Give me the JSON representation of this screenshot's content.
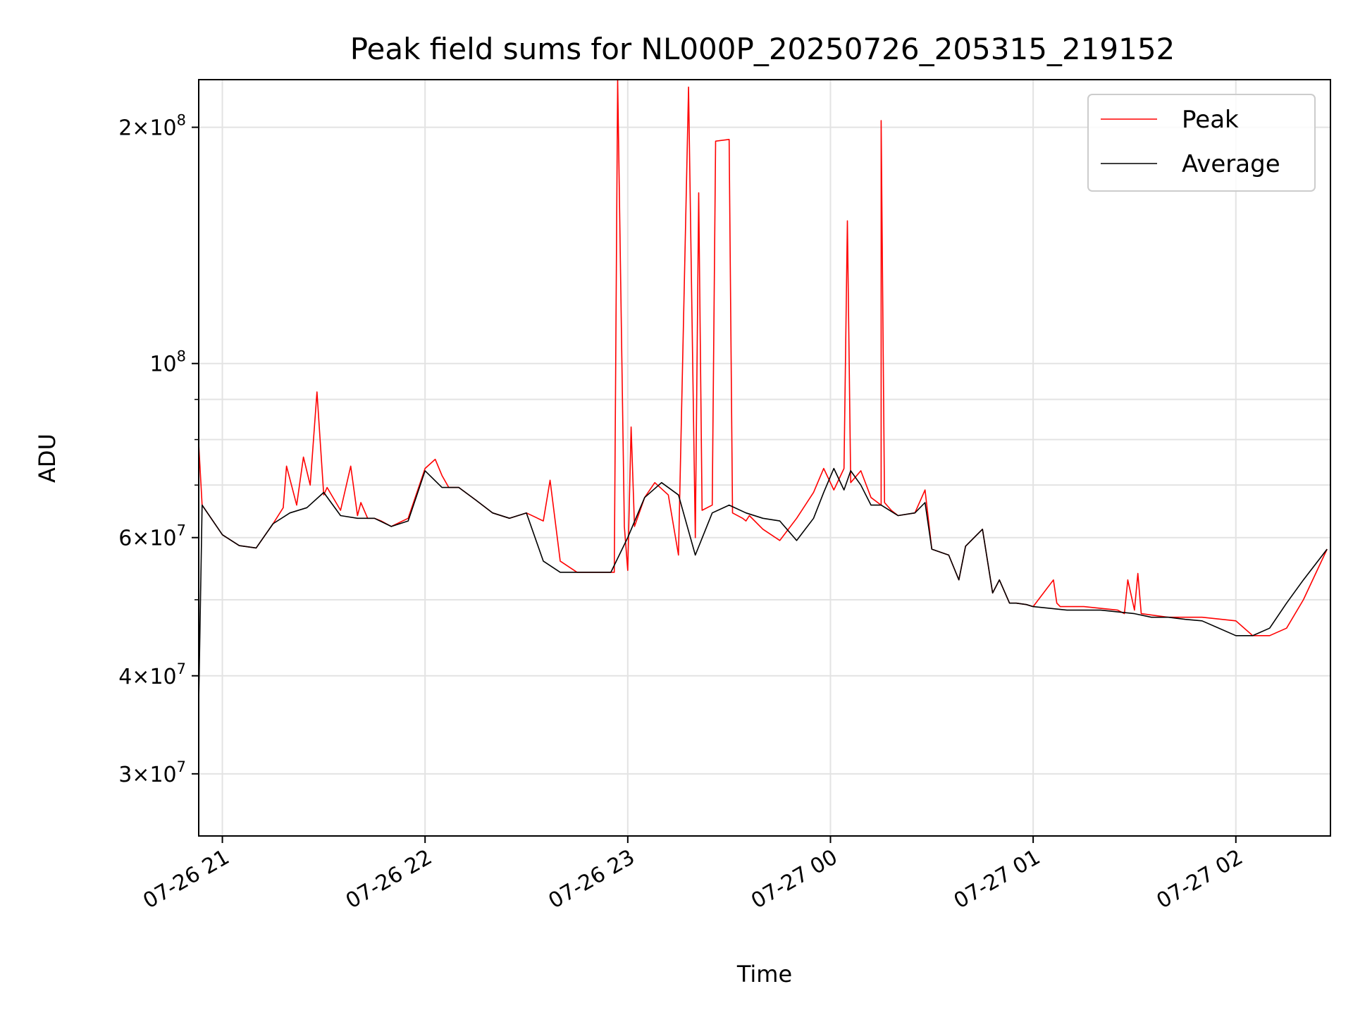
{
  "chart_data": {
    "type": "line",
    "title": "Peak field sums for NL000P_20250726_205315_219152",
    "xlabel": "Time",
    "ylabel": "ADU",
    "yscale": "log",
    "ylim": [
      25000000,
      230000000
    ],
    "xlim": [
      "2025-07-26 20:53",
      "2025-07-27 02:28"
    ],
    "grid": true,
    "legend_position": "top-right",
    "x_ticks": [
      {
        "t": "2025-07-26 21:00",
        "label": "07-26 21"
      },
      {
        "t": "2025-07-26 22:00",
        "label": "07-26 22"
      },
      {
        "t": "2025-07-26 23:00",
        "label": "07-26 23"
      },
      {
        "t": "2025-07-27 00:00",
        "label": "07-27 00"
      },
      {
        "t": "2025-07-27 01:00",
        "label": "07-27 01"
      },
      {
        "t": "2025-07-27 02:00",
        "label": "07-27 02"
      }
    ],
    "y_ticks": [
      {
        "value": 30000000,
        "mantissa": "3",
        "exp": "7"
      },
      {
        "value": 40000000,
        "mantissa": "4",
        "exp": "7"
      },
      {
        "value": 60000000,
        "mantissa": "6",
        "exp": "7"
      },
      {
        "value": 100000000,
        "mantissa": "",
        "exp": "8"
      },
      {
        "value": 200000000,
        "mantissa": "2",
        "exp": "8"
      }
    ],
    "y_minor_ticks": [
      50000000,
      70000000,
      80000000,
      90000000
    ],
    "series": [
      {
        "name": "Peak",
        "color": "#ff0000",
        "x": [
          "2025-07-26 20:53",
          "2025-07-26 20:54",
          "2025-07-26 21:00",
          "2025-07-26 21:05",
          "2025-07-26 21:10",
          "2025-07-26 21:15",
          "2025-07-26 21:18",
          "2025-07-26 21:19",
          "2025-07-26 21:22",
          "2025-07-26 21:24",
          "2025-07-26 21:26",
          "2025-07-26 21:28",
          "2025-07-26 21:30",
          "2025-07-26 21:31",
          "2025-07-26 21:35",
          "2025-07-26 21:38",
          "2025-07-26 21:40",
          "2025-07-26 21:41",
          "2025-07-26 21:43",
          "2025-07-26 21:45",
          "2025-07-26 21:47",
          "2025-07-26 21:50",
          "2025-07-26 21:55",
          "2025-07-26 22:00",
          "2025-07-26 22:03",
          "2025-07-26 22:05",
          "2025-07-26 22:07",
          "2025-07-26 22:10",
          "2025-07-26 22:15",
          "2025-07-26 22:20",
          "2025-07-26 22:25",
          "2025-07-26 22:30",
          "2025-07-26 22:35",
          "2025-07-26 22:37",
          "2025-07-26 22:40",
          "2025-07-26 22:45",
          "2025-07-26 22:50",
          "2025-07-26 22:55",
          "2025-07-26 22:56",
          "2025-07-26 22:57",
          "2025-07-26 22:59",
          "2025-07-26 23:00",
          "2025-07-26 23:01",
          "2025-07-26 23:02",
          "2025-07-26 23:05",
          "2025-07-26 23:08",
          "2025-07-26 23:12",
          "2025-07-26 23:15",
          "2025-07-26 23:18",
          "2025-07-26 23:20",
          "2025-07-26 23:21",
          "2025-07-26 23:22",
          "2025-07-26 23:25",
          "2025-07-26 23:26",
          "2025-07-26 23:30",
          "2025-07-26 23:31",
          "2025-07-26 23:34",
          "2025-07-26 23:35",
          "2025-07-26 23:36",
          "2025-07-26 23:40",
          "2025-07-26 23:45",
          "2025-07-26 23:50",
          "2025-07-26 23:55",
          "2025-07-26 23:58",
          "2025-07-27 00:01",
          "2025-07-27 00:04",
          "2025-07-27 00:05",
          "2025-07-27 00:06",
          "2025-07-27 00:09",
          "2025-07-27 00:12",
          "2025-07-27 00:15",
          "2025-07-27 00:15",
          "2025-07-27 00:16",
          "2025-07-27 00:18",
          "2025-07-27 00:20",
          "2025-07-27 00:25",
          "2025-07-27 00:28",
          "2025-07-27 00:30",
          "2025-07-27 00:35",
          "2025-07-27 00:38",
          "2025-07-27 00:40",
          "2025-07-27 00:45",
          "2025-07-27 00:48",
          "2025-07-27 00:50",
          "2025-07-27 00:53",
          "2025-07-27 00:55",
          "2025-07-27 00:58",
          "2025-07-27 01:00",
          "2025-07-27 01:06",
          "2025-07-27 01:07",
          "2025-07-27 01:08",
          "2025-07-27 01:15",
          "2025-07-27 01:25",
          "2025-07-27 01:27",
          "2025-07-27 01:28",
          "2025-07-27 01:30",
          "2025-07-27 01:31",
          "2025-07-27 01:32",
          "2025-07-27 01:40",
          "2025-07-27 01:50",
          "2025-07-27 02:00",
          "2025-07-27 02:05",
          "2025-07-27 02:10",
          "2025-07-27 02:15",
          "2025-07-27 02:20",
          "2025-07-27 02:27"
        ],
        "y": [
          79000000,
          66000000,
          60500000,
          58600000,
          58200000,
          62500000,
          65500000,
          74000000,
          66000000,
          76000000,
          70000000,
          92000000,
          68000000,
          69500000,
          65000000,
          74000000,
          64000000,
          66500000,
          63500000,
          63500000,
          63000000,
          62000000,
          63500000,
          73500000,
          75500000,
          72000000,
          69500000,
          69500000,
          67000000,
          64500000,
          63500000,
          64500000,
          63000000,
          71000000,
          56000000,
          54200000,
          54200000,
          54200000,
          54200000,
          230000000,
          62000000,
          54500000,
          83000000,
          62000000,
          67500000,
          70500000,
          68000000,
          57000000,
          225000000,
          60000000,
          165000000,
          65000000,
          66000000,
          192000000,
          193000000,
          64500000,
          63500000,
          63000000,
          64000000,
          61500000,
          59500000,
          63500000,
          68500000,
          73500000,
          69000000,
          73500000,
          152000000,
          70500000,
          73000000,
          67500000,
          66000000,
          204000000,
          66500000,
          65000000,
          64000000,
          64500000,
          69000000,
          58000000,
          57000000,
          53000000,
          58500000,
          61500000,
          51000000,
          53000000,
          49500000,
          49500000,
          49300000,
          49000000,
          53000000,
          49500000,
          49000000,
          49000000,
          48500000,
          48000000,
          53000000,
          48500000,
          54000000,
          48000000,
          47500000,
          47500000,
          47000000,
          45000000,
          45000000,
          46000000,
          50000000,
          58000000
        ],
        "note_peak": ""
      },
      {
        "name": "Average",
        "color": "#000000",
        "x": [
          "2025-07-26 20:53",
          "2025-07-26 20:54",
          "2025-07-26 21:00",
          "2025-07-26 21:05",
          "2025-07-26 21:10",
          "2025-07-26 21:15",
          "2025-07-26 21:20",
          "2025-07-26 21:25",
          "2025-07-26 21:30",
          "2025-07-26 21:35",
          "2025-07-26 21:40",
          "2025-07-26 21:45",
          "2025-07-26 21:50",
          "2025-07-26 21:55",
          "2025-07-26 22:00",
          "2025-07-26 22:05",
          "2025-07-26 22:10",
          "2025-07-26 22:15",
          "2025-07-26 22:20",
          "2025-07-26 22:25",
          "2025-07-26 22:30",
          "2025-07-26 22:35",
          "2025-07-26 22:40",
          "2025-07-26 22:45",
          "2025-07-26 22:50",
          "2025-07-26 22:55",
          "2025-07-26 23:00",
          "2025-07-26 23:05",
          "2025-07-26 23:10",
          "2025-07-26 23:15",
          "2025-07-26 23:20",
          "2025-07-26 23:25",
          "2025-07-26 23:30",
          "2025-07-26 23:35",
          "2025-07-26 23:40",
          "2025-07-26 23:45",
          "2025-07-26 23:50",
          "2025-07-26 23:55",
          "2025-07-26 23:58",
          "2025-07-27 00:01",
          "2025-07-27 00:04",
          "2025-07-27 00:06",
          "2025-07-27 00:09",
          "2025-07-27 00:12",
          "2025-07-27 00:15",
          "2025-07-27 00:20",
          "2025-07-27 00:25",
          "2025-07-27 00:28",
          "2025-07-27 00:30",
          "2025-07-27 00:35",
          "2025-07-27 00:38",
          "2025-07-27 00:40",
          "2025-07-27 00:45",
          "2025-07-27 00:48",
          "2025-07-27 00:50",
          "2025-07-27 00:53",
          "2025-07-27 00:55",
          "2025-07-27 00:58",
          "2025-07-27 01:00",
          "2025-07-27 01:10",
          "2025-07-27 01:20",
          "2025-07-27 01:30",
          "2025-07-27 01:35",
          "2025-07-27 01:40",
          "2025-07-27 01:45",
          "2025-07-27 01:50",
          "2025-07-27 02:00",
          "2025-07-27 02:05",
          "2025-07-27 02:10",
          "2025-07-27 02:15",
          "2025-07-27 02:20",
          "2025-07-27 02:27"
        ],
        "y": [
          37000000,
          66000000,
          60500000,
          58600000,
          58200000,
          62500000,
          64500000,
          65500000,
          68500000,
          64000000,
          63500000,
          63500000,
          62000000,
          63000000,
          73000000,
          69500000,
          69500000,
          67000000,
          64500000,
          63500000,
          64500000,
          56000000,
          54200000,
          54200000,
          54200000,
          54200000,
          60000000,
          67500000,
          70500000,
          68000000,
          57000000,
          64500000,
          66000000,
          64500000,
          63500000,
          63000000,
          59500000,
          63500000,
          68500000,
          73500000,
          69000000,
          73000000,
          70000000,
          66000000,
          66000000,
          64000000,
          64500000,
          66500000,
          58000000,
          57000000,
          53000000,
          58500000,
          61500000,
          51000000,
          53000000,
          49500000,
          49500000,
          49300000,
          49000000,
          48500000,
          48500000,
          48000000,
          47500000,
          47500000,
          47200000,
          47000000,
          45000000,
          45000000,
          46000000,
          49500000,
          53000000,
          58000000
        ]
      }
    ]
  }
}
